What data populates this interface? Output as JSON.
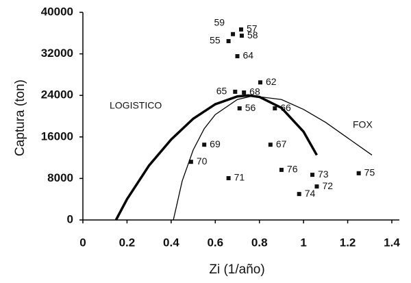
{
  "chart_data": {
    "type": "scatter",
    "x_label": "Zi (1/año)",
    "y_label": "Captura (ton)",
    "xlim": [
      0,
      1.4
    ],
    "xticks": [
      0,
      0.2,
      0.4,
      0.6,
      0.8,
      1,
      1.2,
      1.4
    ],
    "ylim": [
      0,
      40000
    ],
    "yticks": [
      0,
      8000,
      16000,
      24000,
      32000,
      40000
    ],
    "series": [
      {
        "type": "scatter",
        "color": "#111111",
        "labels": [
          "59",
          "57",
          "58",
          "55",
          "64",
          "62",
          "65",
          "68",
          "56",
          "66",
          "69",
          "67",
          "70",
          "76",
          "73",
          "72",
          "74",
          "75",
          "71"
        ],
        "x": [
          0.68,
          0.717,
          0.72,
          0.66,
          0.7,
          0.804,
          0.69,
          0.73,
          0.71,
          0.87,
          0.55,
          0.85,
          0.49,
          0.9,
          1.04,
          1.06,
          0.98,
          1.25,
          0.66
        ],
        "values": [
          35800,
          36700,
          35500,
          34450,
          31550,
          26500,
          24700,
          24550,
          21500,
          21500,
          14500,
          14500,
          11200,
          9650,
          8700,
          6450,
          5000,
          9000,
          8050
        ]
      },
      {
        "type": "line",
        "name": "LOGISTICO",
        "color": "#000000",
        "line_width": 3.5,
        "x": [
          0.15,
          0.2,
          0.3,
          0.4,
          0.5,
          0.6,
          0.7,
          0.75,
          0.8,
          0.9,
          1.0,
          1.06
        ],
        "values": [
          0,
          4000,
          10500,
          15500,
          19500,
          22300,
          23800,
          24000,
          23700,
          21600,
          17000,
          12500
        ]
      },
      {
        "type": "line",
        "name": "FOX",
        "color": "#000000",
        "line_width": 1.3,
        "x": [
          0.41,
          0.45,
          0.5,
          0.55,
          0.6,
          0.7,
          0.77,
          0.9,
          1.0,
          1.1,
          1.2,
          1.31
        ],
        "values": [
          0,
          7500,
          13500,
          17600,
          20300,
          23200,
          23900,
          23200,
          21300,
          18800,
          15800,
          12500
        ]
      }
    ]
  }
}
